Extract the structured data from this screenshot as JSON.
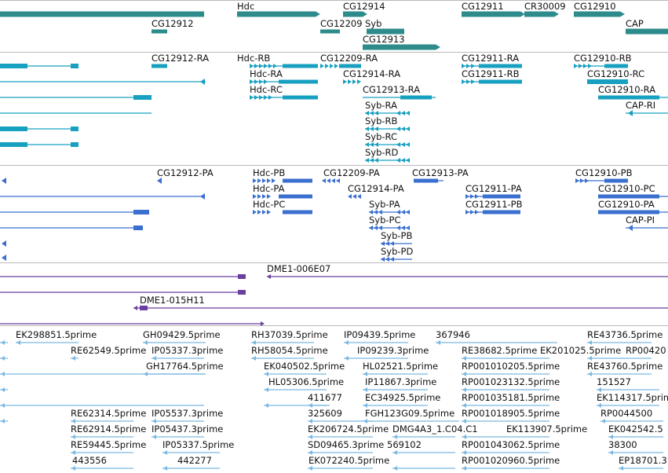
{
  "genes": {
    "color": "#2e8b8b",
    "labels": [
      "Hdc",
      "CG12914",
      "CG12911",
      "CR30009",
      "CG12910",
      "CG12912",
      "CG12209",
      "Syb",
      "CG12913",
      "CAP"
    ]
  },
  "transcripts_ra": {
    "color": "#18a0c0",
    "labels": [
      "CG12912-RA",
      "Hdc-RB",
      "CG12209-RA",
      "CG12911-RA",
      "CG12910-RB",
      "Hdc-RA",
      "CG12914-RA",
      "CG12911-RB",
      "CG12910-RC",
      "Hdc-RC",
      "CG12913-RA",
      "CG12910-RA",
      "Syb-RA",
      "CAP-RI",
      "Syb-RB",
      "Syb-RC",
      "Syb-RD"
    ]
  },
  "transcripts_pa": {
    "color": "#3a6fd0",
    "labels": [
      "CG12912-PA",
      "Hdc-PB",
      "CG12209-PA",
      "CG12913-PA",
      "CG12910-PB",
      "Hdc-PA",
      "CG12914-PA",
      "CG12911-PA",
      "CG12910-PC",
      "Hdc-PC",
      "Syb-PA",
      "CG12911-PB",
      "CG12910-PA",
      "Syb-PC",
      "CAP-PI",
      "Syb-PB",
      "Syb-PD"
    ]
  },
  "clones": {
    "color": "#6a3fa0",
    "labels": [
      "DME1-006E07",
      "DME1-015H11"
    ]
  },
  "ests": {
    "color": "#7ab8e0",
    "labels": [
      "EK298851.5prime",
      "GH09429.5prime",
      "RH37039.5prime",
      "IP09439.5prime",
      "367946",
      "RE43736.5prime",
      "RE62549.5prime",
      "IP05337.3prime",
      "RH58054.5prime",
      "IP09239.3prime",
      "RE38682.5prime",
      "EK201025.5prime",
      "RP00420",
      "GH17764.5prime",
      "EK040502.5prime",
      "HL02521.5prime",
      "RP001010205.5prime",
      "RE43760.5prime",
      "HL05306.5prime",
      "IP11867.3prime",
      "RP001023132.5prime",
      "151527",
      "411677",
      "EC34925.5prime",
      "RP001035181.5prime",
      "EK114317.5prime",
      "RE62314.5prime",
      "IP05537.3prime",
      "325609",
      "FGH123G09.5prime",
      "RP001018905.5prime",
      "RP0044500",
      "RE62914.5prime",
      "IP05437.3prime",
      "EK206724.5prime",
      "DMG4A3_1.C04.C1",
      "EK113907.5prime",
      "EK042542.5",
      "RE59445.5prime",
      "IP05337.5prime",
      "SD09465.3prime",
      "569102",
      "RP001043062.5prime",
      "38300",
      "443556",
      "442277",
      "EK072240.5prime",
      "RP001020960.5prime",
      "EP18701.3"
    ]
  }
}
